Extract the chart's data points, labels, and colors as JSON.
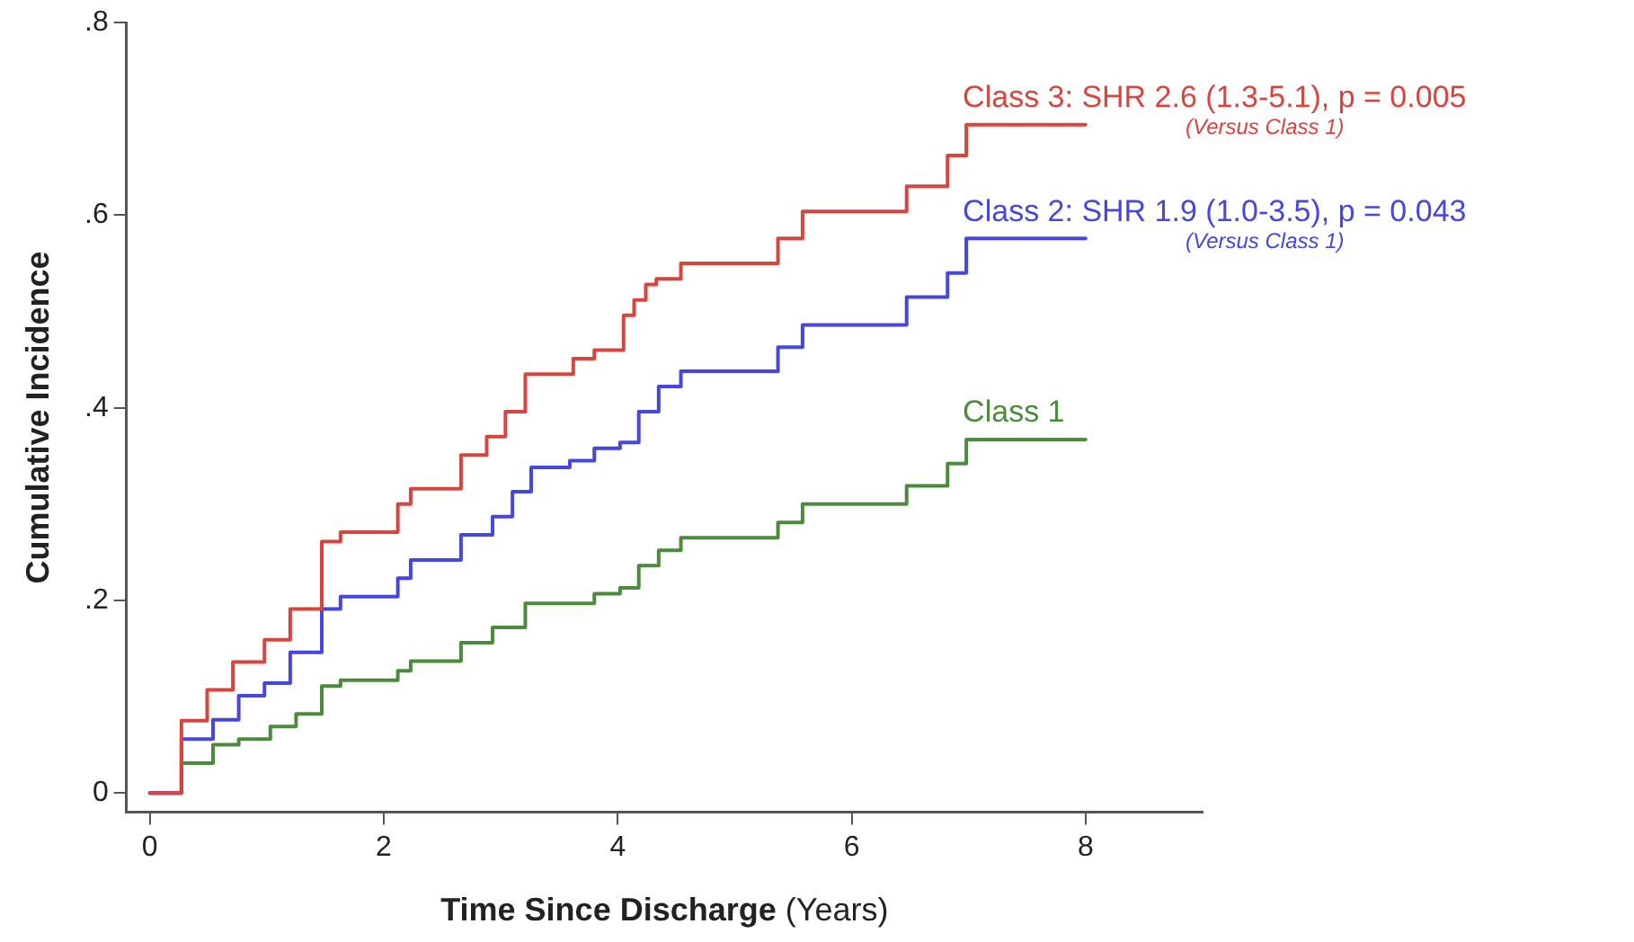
{
  "chart_data": {
    "type": "step",
    "xlabel": "Time Since Discharge (Years)",
    "ylabel": "Cumulative Incidence",
    "xlim": [
      -0.2,
      9
    ],
    "ylim": [
      -0.02,
      0.8
    ],
    "xticks": [
      0,
      2,
      4,
      6,
      8
    ],
    "yticks": [
      {
        "value": 0,
        "label": "0"
      },
      {
        "value": 0.2,
        "label": ".2"
      },
      {
        "value": 0.4,
        "label": ".4"
      },
      {
        "value": 0.6,
        "label": ".6"
      },
      {
        "value": 0.8,
        "label": ".8"
      }
    ],
    "grid": false,
    "legend": false,
    "series": [
      {
        "name": "Class 3: SHR 2.6 (1.3-5.1), p = 0.005",
        "color": "#d8443e",
        "x": [
          0,
          0.27,
          0.49,
          0.71,
          0.98,
          1.2,
          1.47,
          1.63,
          2.12,
          2.23,
          2.66,
          2.88,
          3.04,
          3.21,
          3.62,
          3.8,
          4.05,
          4.14,
          4.24,
          4.33,
          4.54,
          5.37,
          5.58,
          6.47,
          6.82,
          6.98,
          8
        ],
        "values": [
          0,
          0.075,
          0.107,
          0.136,
          0.159,
          0.191,
          0.261,
          0.271,
          0.3,
          0.316,
          0.351,
          0.37,
          0.396,
          0.435,
          0.451,
          0.46,
          0.496,
          0.512,
          0.528,
          0.534,
          0.55,
          0.576,
          0.604,
          0.63,
          0.662,
          0.694,
          0.694
        ]
      },
      {
        "name": "Class 2: SHR 1.9 (1.0-3.5), p = 0.043",
        "color": "#4646e0",
        "x": [
          0,
          0.27,
          0.54,
          0.76,
          0.98,
          1.2,
          1.47,
          1.63,
          2.12,
          2.23,
          2.66,
          2.93,
          3.1,
          3.26,
          3.59,
          3.8,
          4.02,
          4.18,
          4.35,
          4.54,
          5.37,
          5.58,
          6.47,
          6.82,
          6.98,
          8
        ],
        "values": [
          0,
          0.056,
          0.076,
          0.101,
          0.114,
          0.146,
          0.191,
          0.204,
          0.223,
          0.242,
          0.268,
          0.287,
          0.313,
          0.338,
          0.345,
          0.358,
          0.364,
          0.396,
          0.422,
          0.438,
          0.463,
          0.486,
          0.515,
          0.54,
          0.576,
          0.576
        ]
      },
      {
        "name": "Class 1",
        "color": "#4d8b3c",
        "x": [
          0,
          0.27,
          0.54,
          0.76,
          1.03,
          1.25,
          1.47,
          1.63,
          2.12,
          2.23,
          2.66,
          2.93,
          3.21,
          3.8,
          4.02,
          4.18,
          4.35,
          4.54,
          5.37,
          5.58,
          6.47,
          6.82,
          6.98,
          8
        ],
        "values": [
          0,
          0.031,
          0.05,
          0.056,
          0.069,
          0.082,
          0.111,
          0.117,
          0.127,
          0.137,
          0.156,
          0.172,
          0.197,
          0.207,
          0.213,
          0.236,
          0.252,
          0.265,
          0.281,
          0.3,
          0.319,
          0.342,
          0.367,
          0.367
        ]
      }
    ],
    "annotations": [
      "(Versus Class 1)",
      "(Versus Class 1)"
    ]
  }
}
